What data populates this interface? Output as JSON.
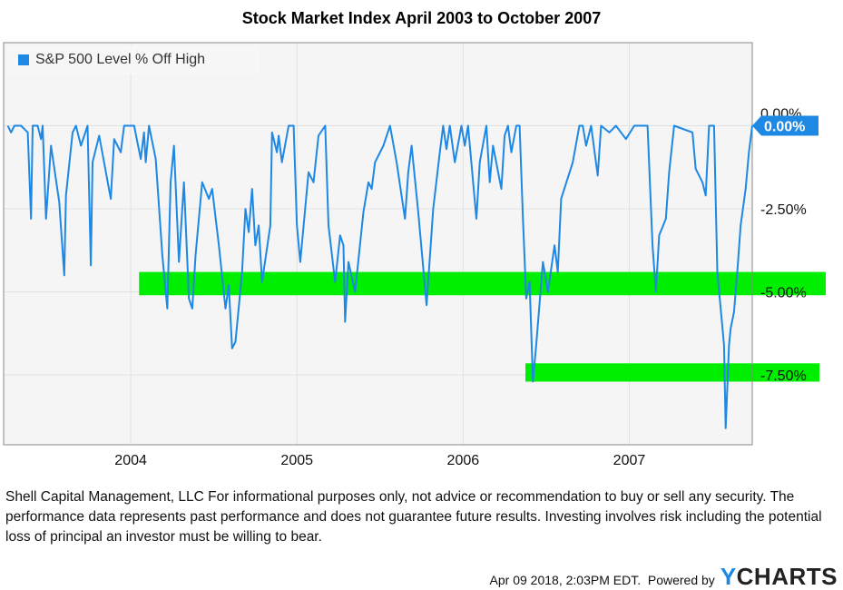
{
  "chart_data": {
    "type": "line",
    "title": "Stock Market Index April 2003 to October 2007",
    "xlabel": "",
    "ylabel": "",
    "xlim": [
      2003.235,
      2007.74
    ],
    "ylim": [
      -9.6,
      2.5
    ],
    "x_ticks": [
      2004,
      2005,
      2006,
      2007
    ],
    "x_tick_labels": [
      "2004",
      "2005",
      "2006",
      "2007"
    ],
    "y_ticks": [
      0,
      -2.5,
      -5,
      -7.5
    ],
    "y_tick_labels": [
      "0.00%",
      "-2.50%",
      "-5.00%",
      "-7.50%"
    ],
    "grid": true,
    "legend": {
      "position": "top-left",
      "entries": [
        "S&P 500 Level % Off High"
      ]
    },
    "last_value_label": "0.00%",
    "colors": {
      "series": "#1e88e5",
      "highlight": "#00ee00",
      "plot_bg": "#f5f5f5"
    },
    "highlights": [
      {
        "level": -5.0,
        "from": 2004.05,
        "range": [
          -4.4,
          -5.1
        ]
      },
      {
        "level": -7.5,
        "from": 2006.375,
        "range": [
          -7.15,
          -7.7
        ]
      }
    ],
    "series": [
      {
        "name": "S&P 500 Level % Off High",
        "points": [
          [
            2003.26,
            0
          ],
          [
            2003.28,
            -0.2
          ],
          [
            2003.3,
            0
          ],
          [
            2003.34,
            0
          ],
          [
            2003.38,
            -0.2
          ],
          [
            2003.4,
            -2.8
          ],
          [
            2003.41,
            0
          ],
          [
            2003.44,
            0
          ],
          [
            2003.46,
            -0.4
          ],
          [
            2003.47,
            0
          ],
          [
            2003.49,
            -2.8
          ],
          [
            2003.52,
            -0.6
          ],
          [
            2003.57,
            -2.3
          ],
          [
            2003.6,
            -4.5
          ],
          [
            2003.61,
            -2.1
          ],
          [
            2003.65,
            -0.2
          ],
          [
            2003.67,
            0
          ],
          [
            2003.7,
            -0.6
          ],
          [
            2003.74,
            0
          ],
          [
            2003.76,
            -4.2
          ],
          [
            2003.77,
            -1.1
          ],
          [
            2003.81,
            -0.3
          ],
          [
            2003.88,
            -2.2
          ],
          [
            2003.9,
            -0.4
          ],
          [
            2003.94,
            -0.8
          ],
          [
            2003.96,
            0
          ],
          [
            2004.02,
            0
          ],
          [
            2004.06,
            -1.0
          ],
          [
            2004.08,
            -0.2
          ],
          [
            2004.09,
            -1.1
          ],
          [
            2004.11,
            0
          ],
          [
            2004.15,
            -1.0
          ],
          [
            2004.19,
            -3.9
          ],
          [
            2004.22,
            -5.5
          ],
          [
            2004.24,
            -1.7
          ],
          [
            2004.26,
            -0.6
          ],
          [
            2004.29,
            -4.1
          ],
          [
            2004.32,
            -1.7
          ],
          [
            2004.35,
            -5.2
          ],
          [
            2004.37,
            -5.5
          ],
          [
            2004.39,
            -3.9
          ],
          [
            2004.43,
            -1.7
          ],
          [
            2004.47,
            -2.2
          ],
          [
            2004.49,
            -1.9
          ],
          [
            2004.53,
            -3.6
          ],
          [
            2004.57,
            -5.5
          ],
          [
            2004.59,
            -4.8
          ],
          [
            2004.61,
            -6.7
          ],
          [
            2004.63,
            -6.5
          ],
          [
            2004.67,
            -4.4
          ],
          [
            2004.69,
            -2.5
          ],
          [
            2004.71,
            -3.2
          ],
          [
            2004.73,
            -1.9
          ],
          [
            2004.75,
            -3.6
          ],
          [
            2004.77,
            -3.0
          ],
          [
            2004.79,
            -4.7
          ],
          [
            2004.84,
            -3.0
          ],
          [
            2004.85,
            -0.2
          ],
          [
            2004.88,
            -0.8
          ],
          [
            2004.89,
            -0.3
          ],
          [
            2004.91,
            -1.1
          ],
          [
            2004.95,
            0
          ],
          [
            2004.98,
            0
          ],
          [
            2005.0,
            -3.0
          ],
          [
            2005.02,
            -4.1
          ],
          [
            2005.07,
            -1.4
          ],
          [
            2005.1,
            -1.7
          ],
          [
            2005.13,
            -0.3
          ],
          [
            2005.17,
            0
          ],
          [
            2005.19,
            -3.0
          ],
          [
            2005.23,
            -4.7
          ],
          [
            2005.26,
            -3.3
          ],
          [
            2005.28,
            -3.6
          ],
          [
            2005.29,
            -5.9
          ],
          [
            2005.31,
            -4.1
          ],
          [
            2005.35,
            -5.0
          ],
          [
            2005.4,
            -2.6
          ],
          [
            2005.43,
            -1.7
          ],
          [
            2005.45,
            -1.9
          ],
          [
            2005.47,
            -1.1
          ],
          [
            2005.52,
            -0.6
          ],
          [
            2005.56,
            0
          ],
          [
            2005.6,
            -1.1
          ],
          [
            2005.65,
            -2.8
          ],
          [
            2005.67,
            -1.4
          ],
          [
            2005.69,
            -0.6
          ],
          [
            2005.73,
            -2.6
          ],
          [
            2005.78,
            -5.4
          ],
          [
            2005.82,
            -2.5
          ],
          [
            2005.86,
            -0.8
          ],
          [
            2005.88,
            0
          ],
          [
            2005.9,
            -0.7
          ],
          [
            2005.92,
            0
          ],
          [
            2005.95,
            -1.1
          ],
          [
            2005.99,
            0
          ],
          [
            2006.01,
            -0.6
          ],
          [
            2006.03,
            0
          ],
          [
            2006.08,
            -2.8
          ],
          [
            2006.1,
            -1.1
          ],
          [
            2006.14,
            0
          ],
          [
            2006.16,
            -1.7
          ],
          [
            2006.18,
            -0.6
          ],
          [
            2006.23,
            -1.9
          ],
          [
            2006.25,
            -0.3
          ],
          [
            2006.27,
            0
          ],
          [
            2006.29,
            -0.8
          ],
          [
            2006.32,
            0
          ],
          [
            2006.34,
            0
          ],
          [
            2006.36,
            -2.8
          ],
          [
            2006.38,
            -5.2
          ],
          [
            2006.4,
            -4.7
          ],
          [
            2006.42,
            -7.7
          ],
          [
            2006.44,
            -6.6
          ],
          [
            2006.48,
            -4.1
          ],
          [
            2006.51,
            -5.0
          ],
          [
            2006.55,
            -3.6
          ],
          [
            2006.57,
            -4.4
          ],
          [
            2006.59,
            -2.2
          ],
          [
            2006.66,
            -1.1
          ],
          [
            2006.7,
            0
          ],
          [
            2006.72,
            0
          ],
          [
            2006.74,
            -0.6
          ],
          [
            2006.77,
            0
          ],
          [
            2006.81,
            -1.5
          ],
          [
            2006.83,
            0
          ],
          [
            2006.88,
            -0.2
          ],
          [
            2006.92,
            0
          ],
          [
            2006.98,
            -0.4
          ],
          [
            2007.03,
            0
          ],
          [
            2007.11,
            0
          ],
          [
            2007.14,
            -3.6
          ],
          [
            2007.16,
            -5.0
          ],
          [
            2007.18,
            -3.3
          ],
          [
            2007.22,
            -2.8
          ],
          [
            2007.24,
            -1.4
          ],
          [
            2007.27,
            0
          ],
          [
            2007.38,
            -0.2
          ],
          [
            2007.4,
            -1.3
          ],
          [
            2007.44,
            -1.7
          ],
          [
            2007.46,
            -2.1
          ],
          [
            2007.48,
            0
          ],
          [
            2007.51,
            0
          ],
          [
            2007.53,
            -4.4
          ],
          [
            2007.57,
            -6.6
          ],
          [
            2007.58,
            -9.1
          ],
          [
            2007.6,
            -6.6
          ],
          [
            2007.61,
            -6.1
          ],
          [
            2007.63,
            -5.6
          ],
          [
            2007.65,
            -4.4
          ],
          [
            2007.67,
            -3.0
          ],
          [
            2007.7,
            -1.9
          ],
          [
            2007.72,
            -0.8
          ],
          [
            2007.74,
            0
          ]
        ]
      }
    ]
  },
  "footer": {
    "disclaimer": "Shell Capital Management, LLC For informational purposes only, not advice or recommendation to buy or sell any security. The performance data represents past performance and does not guarantee future results. Investing involves risk including the potential loss of principal an investor must be willing to bear.",
    "timestamp": "Apr 09 2018, 2:03PM EDT.",
    "powered_by": "Powered by",
    "brand_y": "Y",
    "brand_rest": "CHARTS"
  }
}
